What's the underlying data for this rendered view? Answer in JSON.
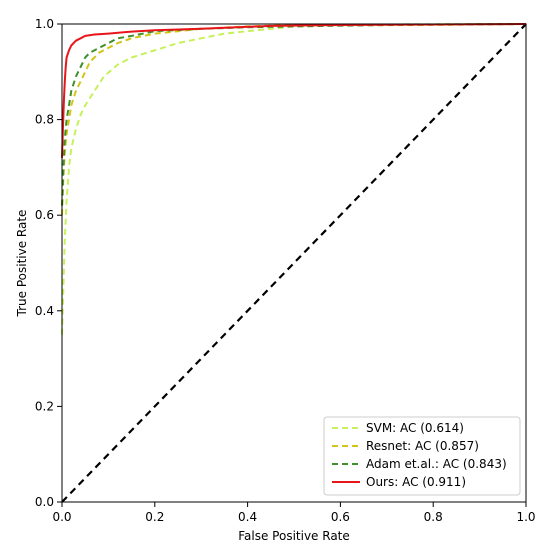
{
  "chart_data": {
    "type": "line",
    "title": "",
    "xlabel": "False Positive Rate",
    "ylabel": "True Positive Rate",
    "xlim": [
      0.0,
      1.0
    ],
    "ylim": [
      0.0,
      1.0
    ],
    "xticks": [
      "0.0",
      "0.2",
      "0.4",
      "0.6",
      "0.8",
      "1.0"
    ],
    "yticks": [
      "0.0",
      "0.2",
      "0.4",
      "0.6",
      "0.8",
      "1.0"
    ],
    "grid": false,
    "legend_position": "lower-right",
    "series": [
      {
        "name": "SVM: AC (0.614)",
        "color": "#c6f15a",
        "style": "dashed",
        "x": [
          0.0,
          0.003,
          0.006,
          0.01,
          0.015,
          0.02,
          0.03,
          0.04,
          0.05,
          0.07,
          0.09,
          0.12,
          0.15,
          0.2,
          0.25,
          0.3,
          0.35,
          0.4,
          0.45,
          0.5,
          0.6,
          0.8,
          1.0
        ],
        "y": [
          0.35,
          0.45,
          0.55,
          0.63,
          0.7,
          0.74,
          0.78,
          0.81,
          0.83,
          0.86,
          0.89,
          0.915,
          0.93,
          0.945,
          0.96,
          0.97,
          0.98,
          0.985,
          0.99,
          0.995,
          0.997,
          0.998,
          1.0
        ]
      },
      {
        "name": "Resnet: AC (0.857)",
        "color": "#d3c418",
        "style": "dashed",
        "x": [
          0.0,
          0.003,
          0.006,
          0.01,
          0.015,
          0.02,
          0.03,
          0.04,
          0.05,
          0.06,
          0.08,
          0.1,
          0.12,
          0.15,
          0.2,
          0.25,
          0.3,
          0.4,
          0.5,
          0.7,
          1.0
        ],
        "y": [
          0.6,
          0.68,
          0.73,
          0.77,
          0.8,
          0.83,
          0.86,
          0.88,
          0.9,
          0.92,
          0.94,
          0.95,
          0.96,
          0.97,
          0.98,
          0.985,
          0.99,
          0.995,
          0.998,
          0.999,
          1.0
        ]
      },
      {
        "name": "Adam et.al.: AC (0.843)",
        "color": "#3f8f2a",
        "style": "dashed",
        "x": [
          0.0,
          0.003,
          0.006,
          0.01,
          0.015,
          0.02,
          0.03,
          0.04,
          0.05,
          0.06,
          0.08,
          0.1,
          0.12,
          0.15,
          0.2,
          0.3,
          0.4,
          0.5,
          0.7,
          1.0
        ],
        "y": [
          0.62,
          0.7,
          0.76,
          0.8,
          0.83,
          0.86,
          0.89,
          0.91,
          0.93,
          0.94,
          0.95,
          0.96,
          0.97,
          0.975,
          0.985,
          0.99,
          0.993,
          0.995,
          0.998,
          1.0
        ]
      },
      {
        "name": "Ours: AC (0.911)",
        "color": "#e8151a",
        "style": "solid",
        "x": [
          0.0,
          0.002,
          0.004,
          0.006,
          0.008,
          0.01,
          0.015,
          0.02,
          0.025,
          0.03,
          0.04,
          0.05,
          0.07,
          0.1,
          0.15,
          0.2,
          0.3,
          0.45,
          0.6,
          0.8,
          1.0
        ],
        "y": [
          0.72,
          0.78,
          0.84,
          0.88,
          0.91,
          0.93,
          0.945,
          0.955,
          0.96,
          0.965,
          0.97,
          0.975,
          0.978,
          0.98,
          0.984,
          0.987,
          0.99,
          0.996,
          0.998,
          0.999,
          1.0
        ]
      }
    ],
    "reference_line": {
      "color": "#000000",
      "style": "dashed",
      "x": [
        0.0,
        1.0
      ],
      "y": [
        0.0,
        1.0
      ]
    }
  }
}
